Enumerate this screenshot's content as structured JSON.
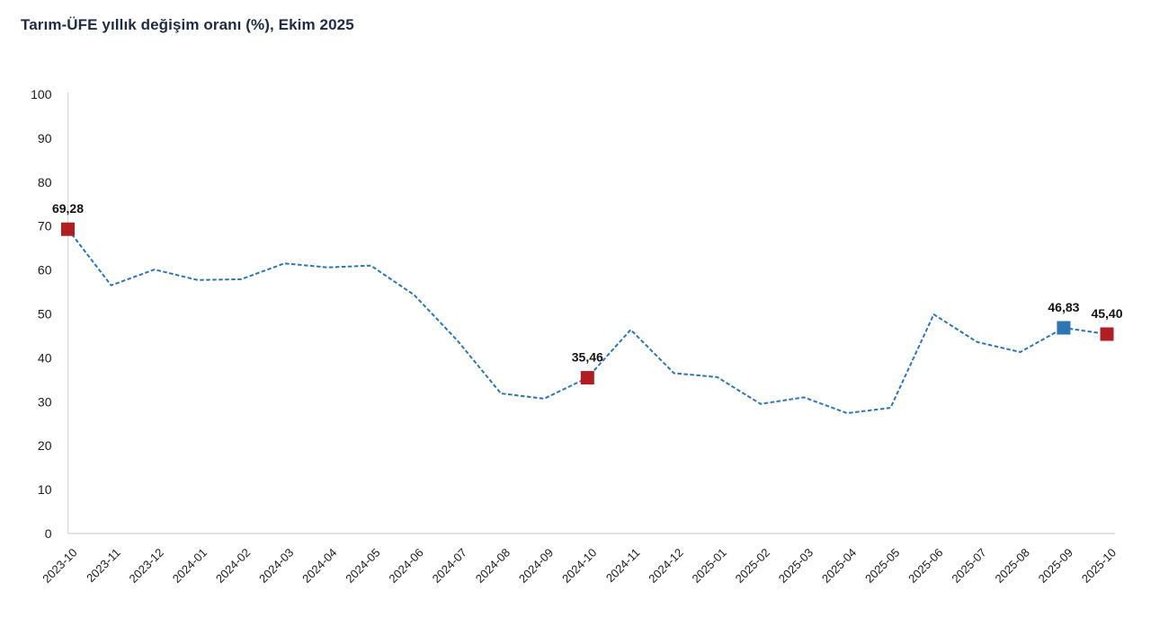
{
  "page": {
    "background": "#ffffff"
  },
  "chart_data": {
    "type": "line",
    "title": "Tarım-ÜFE yıllık değişim oranı (%), Ekim 2025",
    "categories": [
      "2023-10",
      "2023-11",
      "2023-12",
      "2024-01",
      "2024-02",
      "2024-03",
      "2024-04",
      "2024-05",
      "2024-06",
      "2024-07",
      "2024-08",
      "2024-09",
      "2024-10",
      "2024-11",
      "2024-12",
      "2025-01",
      "2025-02",
      "2025-03",
      "2025-04",
      "2025-05",
      "2025-06",
      "2025-07",
      "2025-08",
      "2025-09",
      "2025-10"
    ],
    "values": [
      69.28,
      56.5,
      60.1,
      57.7,
      57.9,
      61.5,
      60.6,
      61.0,
      54.3,
      43.9,
      31.9,
      30.7,
      35.46,
      46.4,
      36.5,
      35.6,
      29.5,
      31.0,
      27.4,
      28.6,
      49.9,
      43.6,
      41.3,
      46.83,
      45.4
    ],
    "point_labels": [
      {
        "index": 0,
        "text": "69,28",
        "marker": "red"
      },
      {
        "index": 12,
        "text": "35,46",
        "marker": "red"
      },
      {
        "index": 23,
        "text": "46,83",
        "marker": "blue"
      },
      {
        "index": 24,
        "text": "45,40",
        "marker": "red"
      }
    ],
    "ylabel": "",
    "xlabel": "",
    "ylim": [
      0,
      100
    ],
    "ytick_step": 10,
    "grid": false,
    "legend": "none",
    "colors": {
      "line": "#2e75b6",
      "marker_red": "#b01e24",
      "marker_blue": "#2e75b6",
      "axis_line": "#d9d9d9",
      "tick_text": "#1a1a1a",
      "title_text": "#1f2a44"
    }
  }
}
